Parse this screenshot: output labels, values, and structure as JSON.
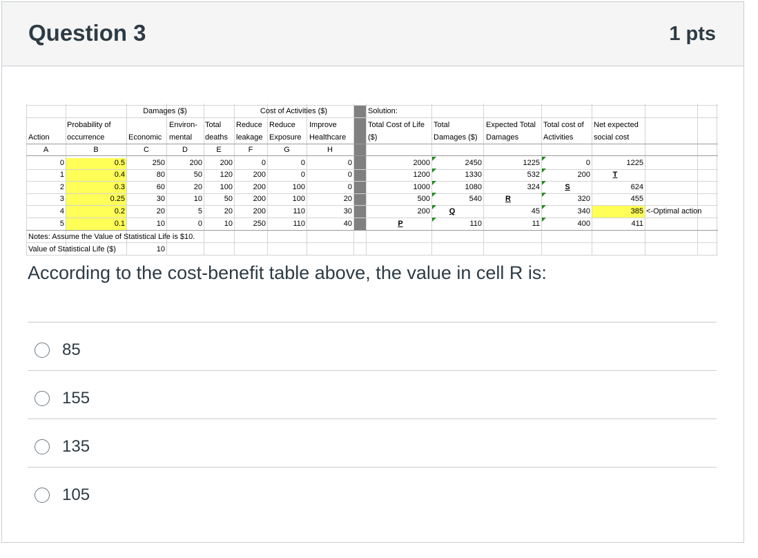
{
  "question": {
    "title": "Question 3",
    "points": "1 pts",
    "text": "According to the cost-benefit table above, the value in cell R is:"
  },
  "answers": [
    {
      "label": "85"
    },
    {
      "label": "155"
    },
    {
      "label": "135"
    },
    {
      "label": "105"
    }
  ],
  "sheet": {
    "group_headers": {
      "damages": "Damages ($)",
      "cost_of_activities": "Cost of Activities ($)",
      "solution": "Solution:"
    },
    "headers": {
      "action": "Action",
      "prob_1": "Probability of",
      "prob_2": "occurrence",
      "economic": "Economic",
      "env_1": "Environ-",
      "env_2": "mental",
      "total_1": "Total",
      "total_2": "deaths",
      "rl_1": "Reduce",
      "rl_2": "leakage",
      "re_1": "Reduce",
      "re_2": "Exposure",
      "ih_1": "Improve",
      "ih_2": "Healthcare",
      "tcl_1": "Total Cost of Life",
      "tcl_2": "($)",
      "td_1": "Total",
      "td_2": "Damages ($)",
      "etd_1": "Expected Total",
      "etd_2": "Damages",
      "tca_1": "Total cost of",
      "tca_2": "Activities",
      "nesc_1": "Net expected",
      "nesc_2": "social cost"
    },
    "letters": [
      "A",
      "B",
      "C",
      "D",
      "E",
      "F",
      "G",
      "H"
    ],
    "rows": [
      {
        "a": "0",
        "b": "0.5",
        "c": "250",
        "d": "200",
        "e": "200",
        "f": "0",
        "g": "0",
        "h": "0",
        "p": "2000",
        "q": "2450",
        "r": "1225",
        "s": "0",
        "t": "1225"
      },
      {
        "a": "1",
        "b": "0.4",
        "c": "80",
        "d": "50",
        "e": "120",
        "f": "200",
        "g": "0",
        "h": "0",
        "p": "1200",
        "q": "1330",
        "r": "532",
        "s": "200",
        "t": "T"
      },
      {
        "a": "2",
        "b": "0.3",
        "c": "60",
        "d": "20",
        "e": "100",
        "f": "200",
        "g": "100",
        "h": "0",
        "p": "1000",
        "q": "1080",
        "r": "324",
        "s": "S",
        "t": "624"
      },
      {
        "a": "3",
        "b": "0.25",
        "c": "30",
        "d": "10",
        "e": "50",
        "f": "200",
        "g": "100",
        "h": "20",
        "p": "500",
        "q": "540",
        "r": "R",
        "s": "320",
        "t": "455"
      },
      {
        "a": "4",
        "b": "0.2",
        "c": "20",
        "d": "5",
        "e": "20",
        "f": "200",
        "g": "110",
        "h": "30",
        "p": "200",
        "q": "Q",
        "r": "45",
        "s": "340",
        "t": "385"
      },
      {
        "a": "5",
        "b": "0.1",
        "c": "10",
        "d": "0",
        "e": "10",
        "f": "250",
        "g": "110",
        "h": "40",
        "p": "P",
        "q": "110",
        "r": "11",
        "s": "400",
        "t": "411"
      }
    ],
    "optimal_note": "<-Optimal action",
    "notes": "Notes: Assume the Value of Statistical Life is $10.",
    "vsl_label": "Value of Statistical Life ($)",
    "vsl_value": "10",
    "colors": {
      "highlight": "#ffff57",
      "divider": "#808080",
      "flag": "#1f8a1f"
    }
  }
}
